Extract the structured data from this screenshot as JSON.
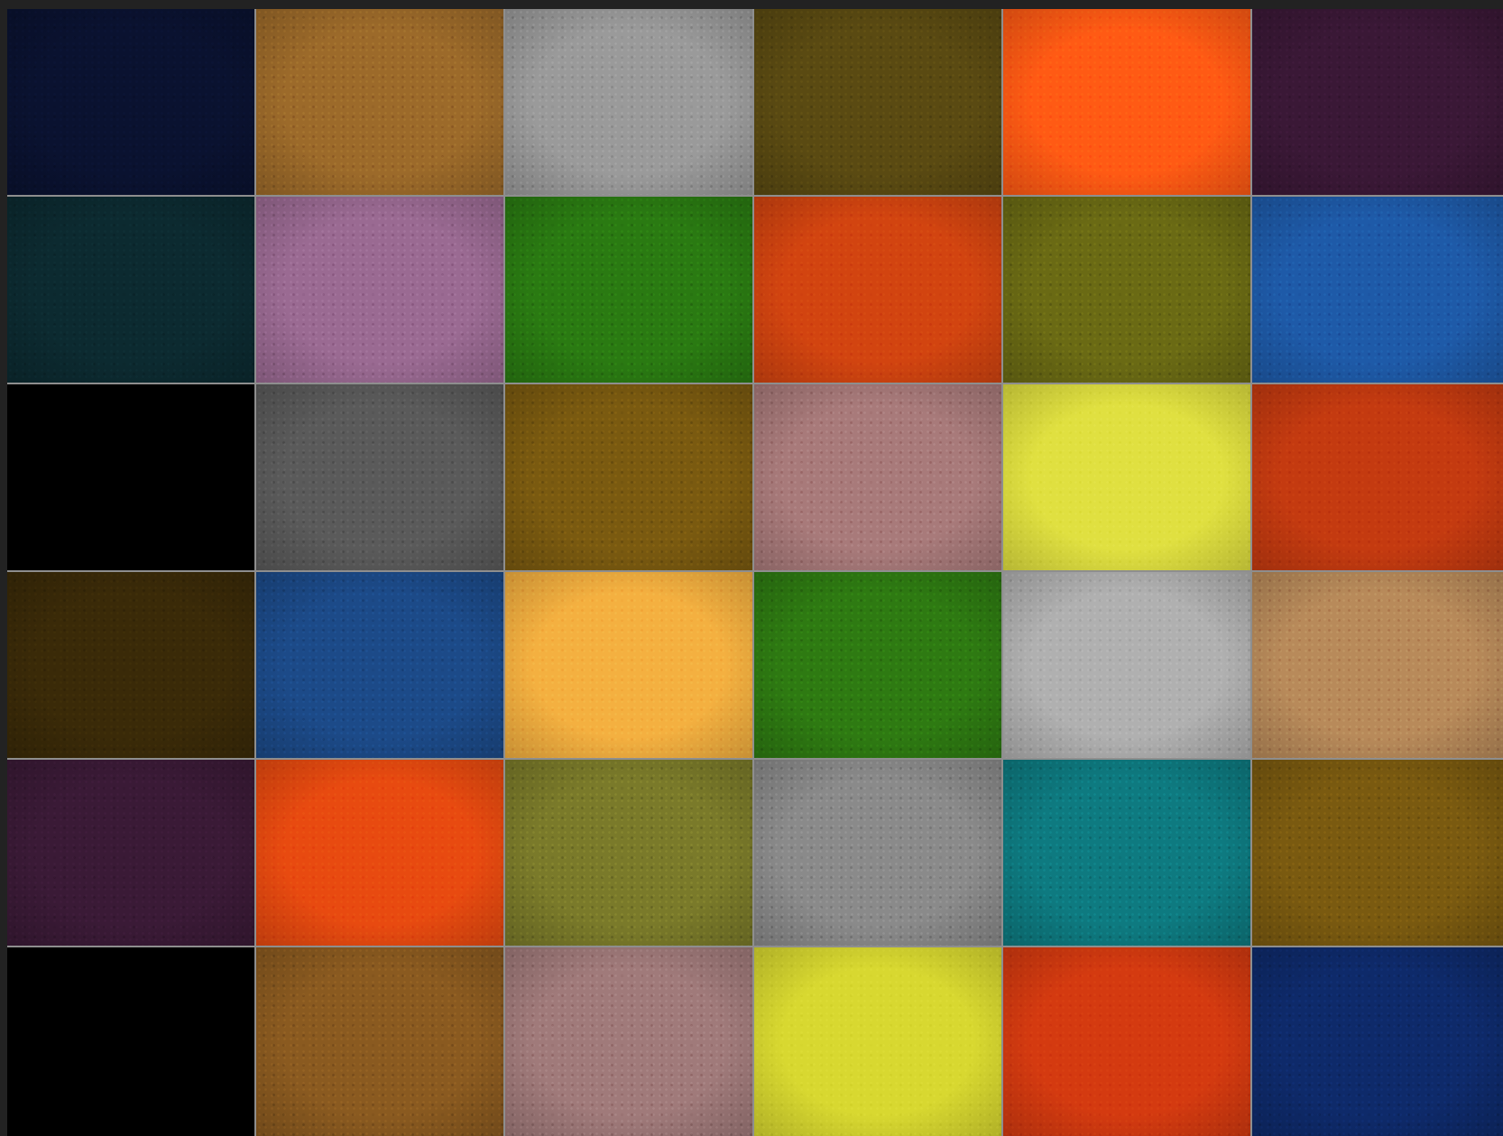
{
  "image": {
    "subject": "",
    "tiles": [
      [
        "#0a1230",
        "#9c6a2a",
        "#9a9a9a",
        "#5a4a12",
        "#ff5a14",
        "#3a1836"
      ],
      [
        "#0c2a30",
        "#9a6a92",
        "#2a7a12",
        "#d24410",
        "#6a6a14",
        "#1e5aa8"
      ],
      [
        "#000000",
        "#5a5a5a",
        "#7a5a10",
        "#a87a7a",
        "#e0e040",
        "#c43a10"
      ],
      [
        "#3a2a08",
        "#1c4a88",
        "#f4b040",
        "#2e7a12",
        "#b0b0b0",
        "#b88a5a"
      ],
      [
        "#3a1a36",
        "#e84a10",
        "#7a7a2a",
        "#8a8a8a",
        "#0e7a80",
        "#7a5a10"
      ],
      [
        "#000000",
        "#8a5a20",
        "#a07a7a",
        "#d8d830",
        "#d43a10",
        "#0e2a6a"
      ]
    ]
  }
}
